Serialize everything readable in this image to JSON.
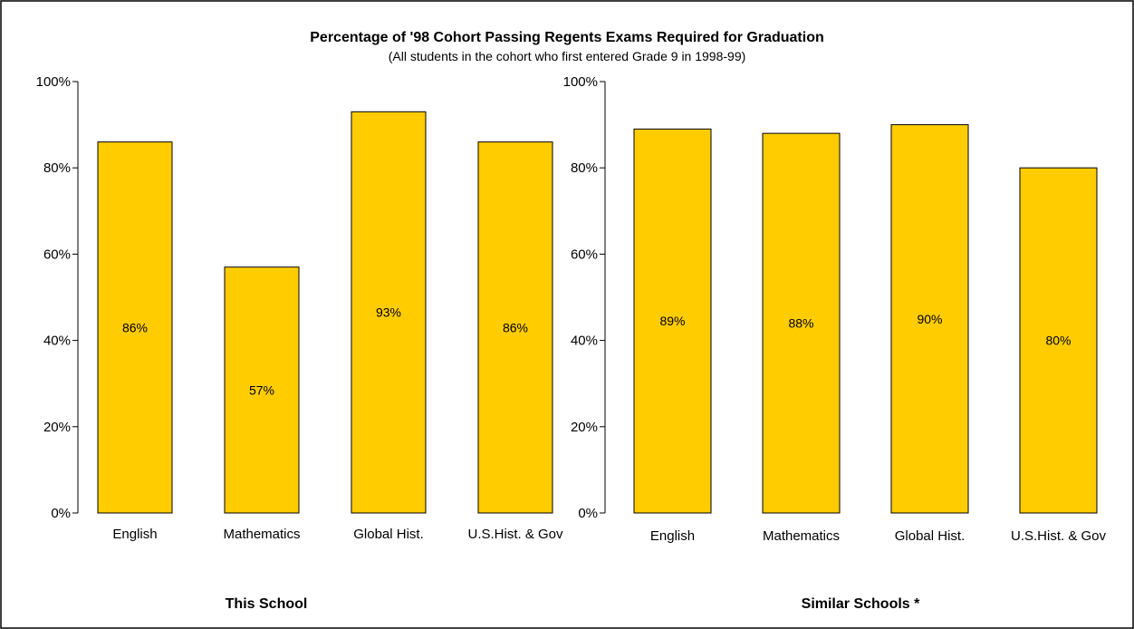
{
  "title": "Percentage of '98 Cohort Passing Regents Exams Required for Graduation",
  "subtitle": "(All students in the cohort who first entered Grade 9 in 1998-99)",
  "colors": {
    "bar": "#FFCC00",
    "bar_stroke": "#000000",
    "border": "#000000"
  },
  "chart_data": [
    {
      "type": "bar",
      "title": "This School",
      "categories": [
        "English",
        "Mathematics",
        "Global Hist.",
        "U.S.Hist. & Gov"
      ],
      "values": [
        86,
        57,
        93,
        86
      ],
      "data_labels": [
        "86%",
        "57%",
        "93%",
        "86%"
      ],
      "ylim": [
        0,
        100
      ],
      "yticks": [
        "0%",
        "20%",
        "40%",
        "60%",
        "80%",
        "100%"
      ],
      "grid": false
    },
    {
      "type": "bar",
      "title": "Similar Schools *",
      "categories": [
        "English",
        "Mathematics",
        "Global Hist.",
        "U.S.Hist. & Gov"
      ],
      "values": [
        89,
        88,
        90,
        80
      ],
      "data_labels": [
        "89%",
        "88%",
        "90%",
        "80%"
      ],
      "ylim": [
        0,
        100
      ],
      "yticks": [
        "0%",
        "20%",
        "40%",
        "60%",
        "80%",
        "100%"
      ],
      "grid": false
    }
  ]
}
